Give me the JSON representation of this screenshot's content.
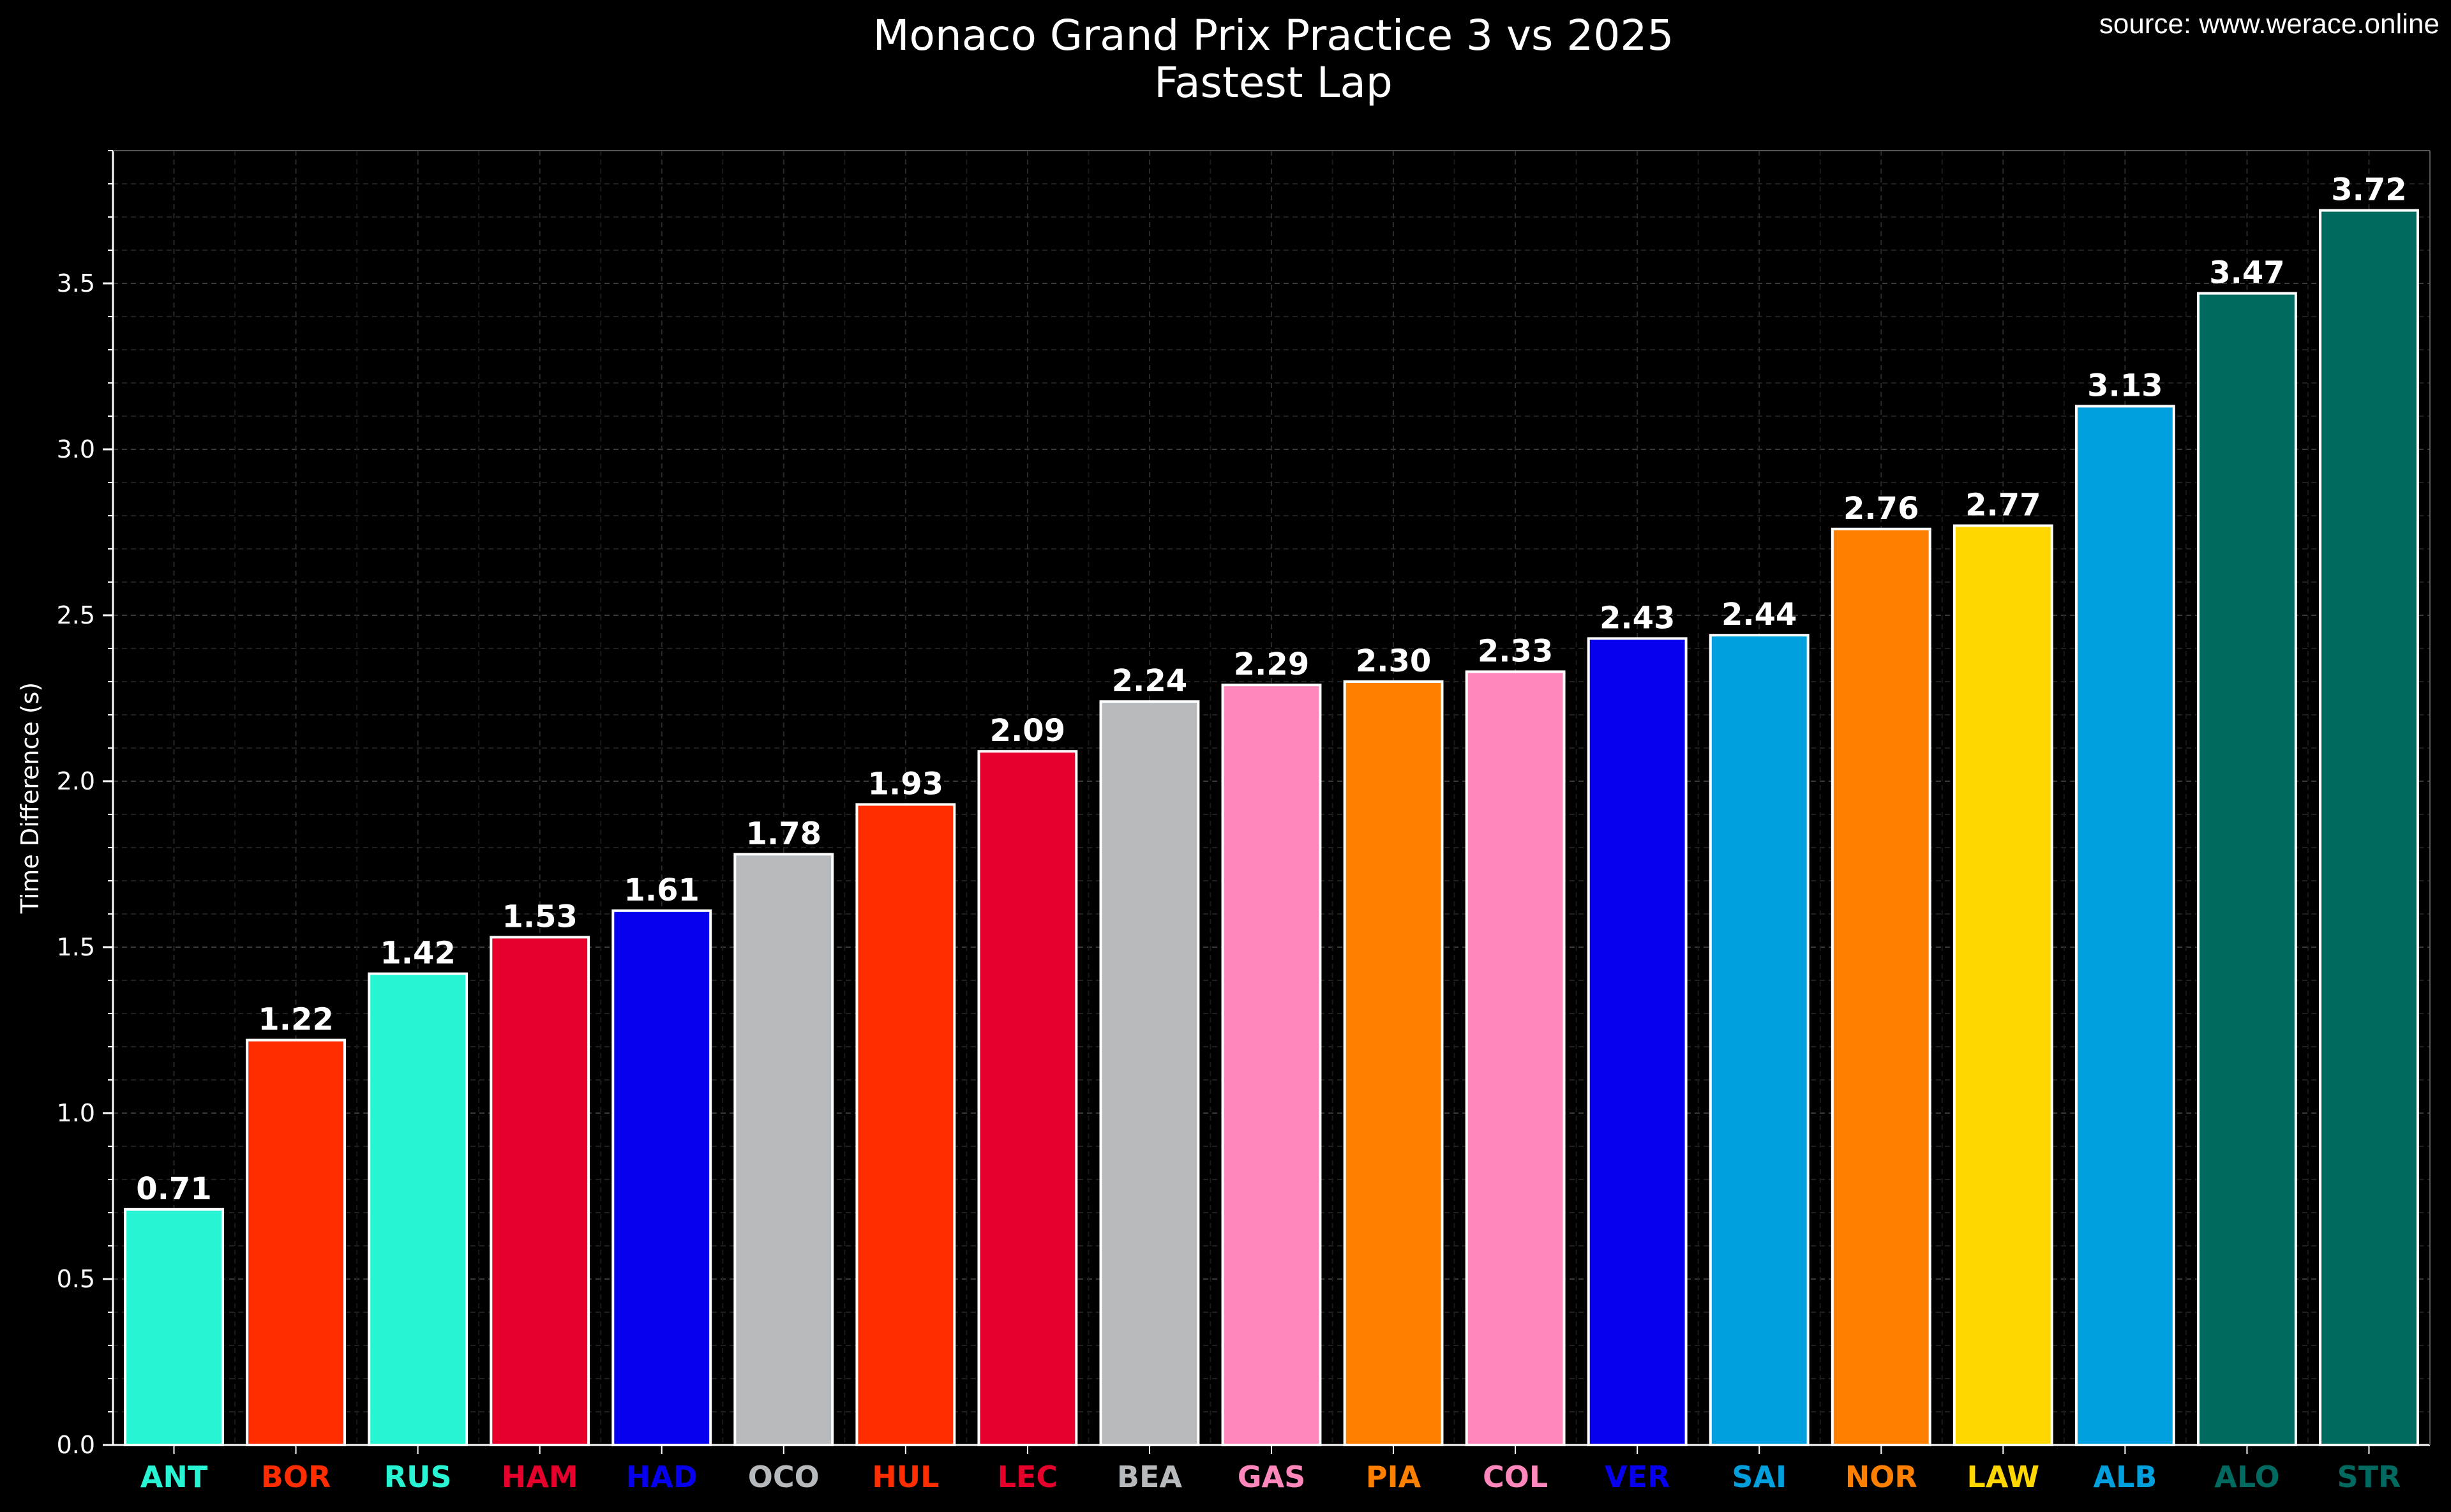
{
  "source": "source: www.werace.online",
  "chart_data": {
    "type": "bar",
    "title": "Monaco Grand Prix Practice 3 vs 2025",
    "subtitle": "Fastest Lap",
    "xlabel": "",
    "ylabel": "Time Difference (s)",
    "ylim": [
      0,
      3.9
    ],
    "yticks": [
      "0.0",
      "0.5",
      "1.0",
      "1.5",
      "2.0",
      "2.5",
      "3.0",
      "3.5"
    ],
    "grid": true,
    "categories": [
      "ANT",
      "BOR",
      "RUS",
      "HAM",
      "HAD",
      "OCO",
      "HUL",
      "LEC",
      "BEA",
      "GAS",
      "PIA",
      "COL",
      "VER",
      "SAI",
      "NOR",
      "LAW",
      "ALB",
      "ALO",
      "STR"
    ],
    "values": [
      0.71,
      1.22,
      1.42,
      1.53,
      1.61,
      1.78,
      1.93,
      2.09,
      2.24,
      2.29,
      2.3,
      2.33,
      2.43,
      2.44,
      2.76,
      2.77,
      3.13,
      3.47,
      3.72
    ],
    "value_labels": [
      "0.71",
      "1.22",
      "1.42",
      "1.53",
      "1.61",
      "1.78",
      "1.93",
      "2.09",
      "2.24",
      "2.29",
      "2.30",
      "2.33",
      "2.43",
      "2.44",
      "2.76",
      "2.77",
      "3.13",
      "3.47",
      "3.72"
    ],
    "colors": [
      "#27F4D2",
      "#FF2D00",
      "#27F4D2",
      "#E8002D",
      "#0600EF",
      "#B6BABD",
      "#FF2D00",
      "#E8002D",
      "#B6BABD",
      "#FF87BC",
      "#FF8000",
      "#FF87BC",
      "#0600EF",
      "#00A0DE",
      "#FF8000",
      "#FFD700",
      "#00A0DE",
      "#006A60",
      "#006A60"
    ]
  }
}
